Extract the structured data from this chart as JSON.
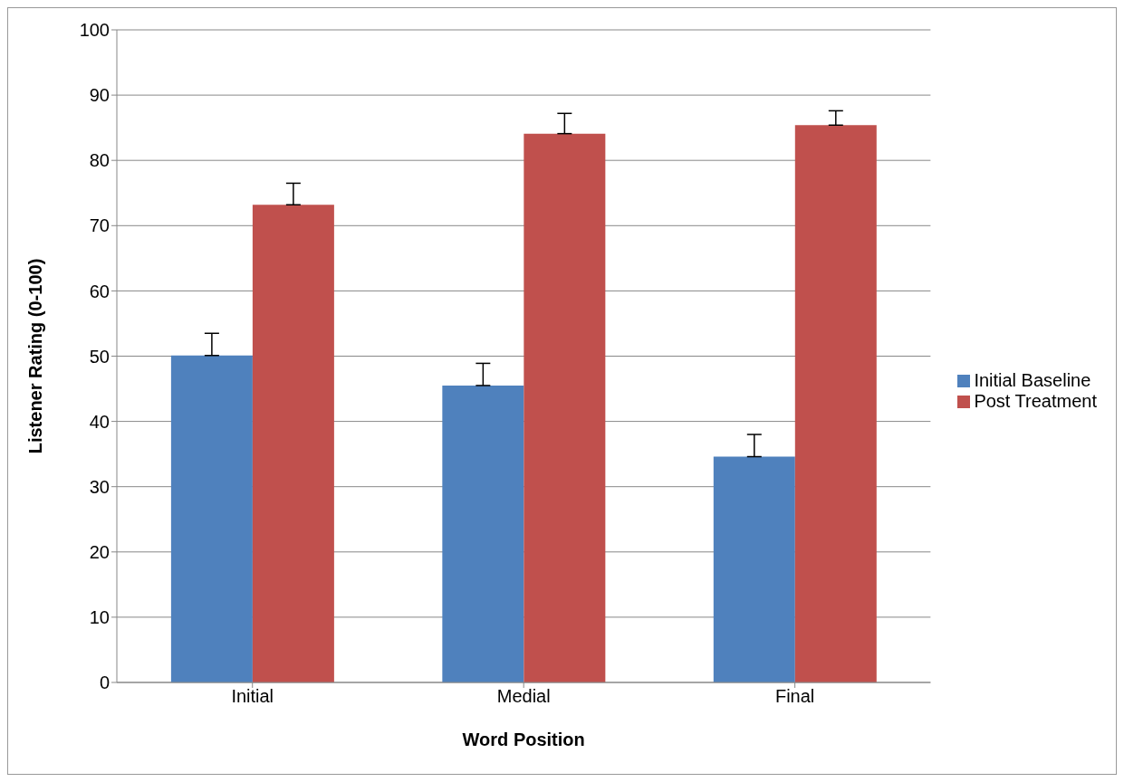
{
  "chart_data": {
    "type": "bar",
    "xlabel": "Word Position",
    "ylabel": "Listener Rating (0-100)",
    "categories": [
      "Initial",
      "Medial",
      "Final"
    ],
    "series": [
      {
        "name": "Initial Baseline",
        "color": "#4f81bd",
        "values": [
          50.1,
          45.5,
          34.6
        ],
        "errors": [
          [
            50.1,
            53.5
          ],
          [
            45.5,
            48.9
          ],
          [
            34.6,
            38.0
          ]
        ]
      },
      {
        "name": "Post Treatment",
        "color": "#c0504d",
        "values": [
          73.2,
          84.1,
          85.4
        ],
        "errors": [
          [
            73.2,
            76.5
          ],
          [
            84.1,
            87.2
          ],
          [
            85.4,
            87.6
          ]
        ]
      }
    ],
    "ylim": [
      0,
      100
    ],
    "yticks": [
      0,
      10,
      20,
      30,
      40,
      50,
      60,
      70,
      80,
      90,
      100
    ],
    "grid": "y",
    "legend": "right"
  }
}
